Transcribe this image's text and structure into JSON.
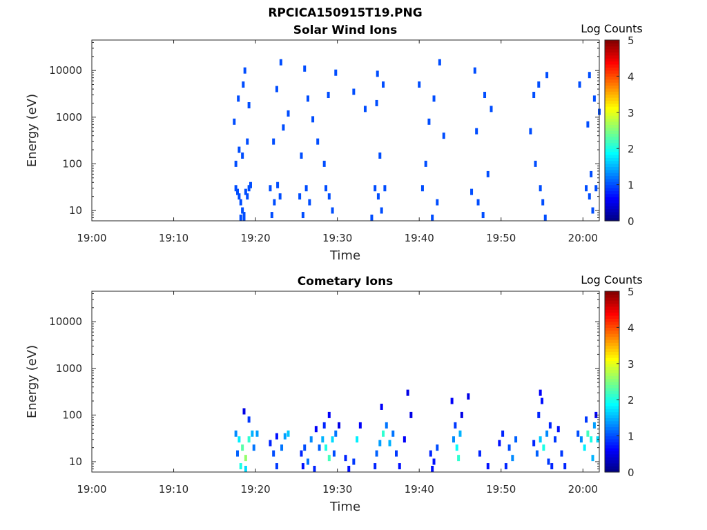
{
  "figure_title": "RPCICA150915T19.PNG",
  "colors": {
    "axis": "#262626",
    "background": "#ffffff",
    "colormap": "jet"
  },
  "chart_data": [
    {
      "type": "heatmap",
      "title": "Solar Wind Ions",
      "xlabel": "Time",
      "ylabel": "Energy (eV)",
      "x_ticks": [
        "19:00",
        "19:10",
        "19:20",
        "19:30",
        "19:40",
        "19:50",
        "20:00"
      ],
      "x_range_minutes": [
        0,
        62
      ],
      "y_scale": "log",
      "y_ticks": [
        "10",
        "100",
        "1000",
        "10000"
      ],
      "y_range": [
        6,
        45000
      ],
      "colorbar": {
        "label": "Log Counts",
        "ticks": [
          "0",
          "1",
          "2",
          "3",
          "4",
          "5"
        ],
        "range": [
          0,
          5
        ]
      },
      "cells": [
        [
          17.6,
          30,
          1
        ],
        [
          17.8,
          25,
          1
        ],
        [
          18.0,
          20,
          1
        ],
        [
          18.2,
          15,
          1
        ],
        [
          18.4,
          10,
          1
        ],
        [
          18.6,
          8,
          1
        ],
        [
          18.8,
          25,
          1
        ],
        [
          19.0,
          20,
          1
        ],
        [
          19.2,
          30,
          1
        ],
        [
          19.4,
          35,
          1
        ],
        [
          18.2,
          7,
          1
        ],
        [
          18.6,
          6,
          1
        ],
        [
          17.6,
          100,
          1
        ],
        [
          18.0,
          200,
          1
        ],
        [
          18.4,
          150,
          1
        ],
        [
          19.0,
          300,
          1
        ],
        [
          17.4,
          800,
          1
        ],
        [
          17.9,
          2500,
          1
        ],
        [
          18.5,
          5000,
          1
        ],
        [
          19.2,
          1800,
          1
        ],
        [
          18.7,
          10000,
          1
        ],
        [
          21.8,
          30,
          1
        ],
        [
          22.3,
          15,
          1
        ],
        [
          22.7,
          35,
          1
        ],
        [
          22.0,
          8,
          1
        ],
        [
          23.0,
          20,
          1
        ],
        [
          22.2,
          300,
          1
        ],
        [
          23.4,
          600,
          1
        ],
        [
          22.6,
          4000,
          1
        ],
        [
          23.1,
          15000,
          1
        ],
        [
          24.0,
          1200,
          1
        ],
        [
          25.4,
          20,
          1
        ],
        [
          25.8,
          8,
          1
        ],
        [
          26.2,
          30,
          1
        ],
        [
          26.6,
          15,
          1
        ],
        [
          25.6,
          150,
          1
        ],
        [
          26.4,
          2500,
          1
        ],
        [
          27.0,
          900,
          1
        ],
        [
          26.0,
          11000,
          1
        ],
        [
          27.6,
          300,
          1
        ],
        [
          28.6,
          30,
          1
        ],
        [
          29.0,
          20,
          1
        ],
        [
          29.4,
          10,
          1
        ],
        [
          28.4,
          100,
          1
        ],
        [
          28.9,
          3000,
          1
        ],
        [
          29.8,
          9000,
          1
        ],
        [
          34.6,
          30,
          1
        ],
        [
          35.0,
          20,
          1
        ],
        [
          35.4,
          10,
          1
        ],
        [
          35.8,
          30,
          1
        ],
        [
          34.2,
          7,
          1
        ],
        [
          35.2,
          150,
          1
        ],
        [
          34.8,
          2000,
          1
        ],
        [
          35.6,
          5000,
          1
        ],
        [
          34.9,
          8500,
          1
        ],
        [
          33.4,
          1500,
          1
        ],
        [
          32.0,
          3500,
          1
        ],
        [
          40.4,
          30,
          1
        ],
        [
          41.6,
          7,
          1
        ],
        [
          42.2,
          15,
          1
        ],
        [
          40.8,
          100,
          1
        ],
        [
          41.2,
          800,
          1
        ],
        [
          41.8,
          2500,
          1
        ],
        [
          42.5,
          15000,
          1
        ],
        [
          40.0,
          5000,
          1
        ],
        [
          43.0,
          400,
          1
        ],
        [
          46.4,
          25,
          1
        ],
        [
          47.2,
          15,
          1
        ],
        [
          47.8,
          8,
          1
        ],
        [
          48.4,
          60,
          1
        ],
        [
          47.0,
          500,
          1
        ],
        [
          48.0,
          3000,
          1
        ],
        [
          46.8,
          10000,
          1
        ],
        [
          48.8,
          1500,
          1
        ],
        [
          54.8,
          30,
          1
        ],
        [
          55.1,
          15,
          1
        ],
        [
          55.4,
          7,
          1
        ],
        [
          54.2,
          100,
          1
        ],
        [
          53.6,
          500,
          1
        ],
        [
          54.0,
          3000,
          1
        ],
        [
          54.6,
          5000,
          1
        ],
        [
          55.6,
          8000,
          1
        ],
        [
          60.4,
          30,
          1
        ],
        [
          60.8,
          20,
          1
        ],
        [
          61.2,
          10,
          1
        ],
        [
          61.6,
          30,
          1
        ],
        [
          61.0,
          60,
          1
        ],
        [
          60.6,
          700,
          1
        ],
        [
          61.4,
          2500,
          1
        ],
        [
          60.8,
          8000,
          1
        ],
        [
          59.6,
          5000,
          1
        ],
        [
          62.0,
          1300,
          1
        ]
      ]
    },
    {
      "type": "heatmap",
      "title": "Cometary Ions",
      "xlabel": "Time",
      "ylabel": "Energy (eV)",
      "x_ticks": [
        "19:00",
        "19:10",
        "19:20",
        "19:30",
        "19:40",
        "19:50",
        "20:00"
      ],
      "x_range_minutes": [
        0,
        62
      ],
      "y_scale": "log",
      "y_ticks": [
        "10",
        "100",
        "1000",
        "10000"
      ],
      "y_range": [
        6,
        45000
      ],
      "colorbar": {
        "label": "Log Counts",
        "ticks": [
          "0",
          "1",
          "2",
          "3",
          "4",
          "5"
        ],
        "range": [
          0,
          5
        ]
      },
      "cells": [
        [
          17.6,
          40,
          1.3
        ],
        [
          18.0,
          30,
          1.8
        ],
        [
          18.4,
          20,
          2.3
        ],
        [
          18.8,
          12,
          2.6
        ],
        [
          19.2,
          30,
          2.1
        ],
        [
          19.6,
          40,
          1.5
        ],
        [
          18.2,
          8,
          2.0
        ],
        [
          18.8,
          7,
          1.7
        ],
        [
          19.8,
          20,
          1.2
        ],
        [
          19.2,
          80,
          0.9
        ],
        [
          18.6,
          120,
          0.5
        ],
        [
          20.2,
          40,
          1.4
        ],
        [
          17.8,
          15,
          1.1
        ],
        [
          21.8,
          25,
          0.8
        ],
        [
          22.2,
          15,
          1.0
        ],
        [
          22.6,
          8,
          0.9
        ],
        [
          23.2,
          20,
          1.2
        ],
        [
          23.6,
          35,
          1.4
        ],
        [
          24.0,
          40,
          1.6
        ],
        [
          22.6,
          35,
          0.7
        ],
        [
          25.6,
          15,
          0.8
        ],
        [
          26.0,
          20,
          1.0
        ],
        [
          26.4,
          10,
          1.2
        ],
        [
          26.8,
          30,
          1.3
        ],
        [
          27.2,
          7,
          0.8
        ],
        [
          25.8,
          8,
          0.7
        ],
        [
          27.4,
          50,
          0.6
        ],
        [
          27.8,
          20,
          1.1
        ],
        [
          28.2,
          30,
          1.5
        ],
        [
          28.6,
          20,
          2.0
        ],
        [
          29.0,
          12,
          2.2
        ],
        [
          29.4,
          30,
          1.7
        ],
        [
          28.4,
          60,
          0.8
        ],
        [
          29.0,
          100,
          0.6
        ],
        [
          29.8,
          40,
          1.2
        ],
        [
          30.2,
          60,
          0.5
        ],
        [
          29.6,
          15,
          1.0
        ],
        [
          31.0,
          12,
          0.8
        ],
        [
          32.0,
          10,
          0.9
        ],
        [
          32.4,
          30,
          1.8
        ],
        [
          32.8,
          60,
          0.6
        ],
        [
          31.4,
          7,
          0.7
        ],
        [
          34.8,
          15,
          1.1
        ],
        [
          35.2,
          25,
          1.4
        ],
        [
          35.6,
          40,
          2.1
        ],
        [
          36.0,
          60,
          1.2
        ],
        [
          35.4,
          150,
          0.6
        ],
        [
          34.6,
          8,
          0.8
        ],
        [
          36.4,
          25,
          1.5
        ],
        [
          36.8,
          40,
          1.2
        ],
        [
          37.2,
          15,
          0.9
        ],
        [
          37.6,
          8,
          0.7
        ],
        [
          38.2,
          30,
          0.6
        ],
        [
          39.0,
          100,
          0.5
        ],
        [
          38.6,
          300,
          0.5
        ],
        [
          41.4,
          15,
          0.8
        ],
        [
          41.8,
          10,
          0.7
        ],
        [
          42.2,
          20,
          1.0
        ],
        [
          41.6,
          7,
          0.7
        ],
        [
          44.2,
          30,
          1.3
        ],
        [
          44.6,
          20,
          1.9
        ],
        [
          44.8,
          12,
          2.1
        ],
        [
          44.4,
          60,
          0.9
        ],
        [
          45.0,
          40,
          1.5
        ],
        [
          44.0,
          200,
          0.6
        ],
        [
          45.2,
          100,
          0.5
        ],
        [
          46.0,
          250,
          0.5
        ],
        [
          47.4,
          15,
          0.8
        ],
        [
          48.4,
          8,
          0.7
        ],
        [
          49.8,
          25,
          0.7
        ],
        [
          50.2,
          40,
          0.8
        ],
        [
          51.0,
          20,
          1.0
        ],
        [
          51.4,
          12,
          1.3
        ],
        [
          51.8,
          30,
          1.1
        ],
        [
          50.6,
          8,
          0.8
        ],
        [
          54.0,
          25,
          0.8
        ],
        [
          54.4,
          15,
          1.1
        ],
        [
          54.8,
          30,
          1.6
        ],
        [
          55.2,
          20,
          2.0
        ],
        [
          55.6,
          40,
          1.3
        ],
        [
          54.6,
          100,
          0.8
        ],
        [
          54.8,
          300,
          0.6
        ],
        [
          55.0,
          200,
          0.7
        ],
        [
          56.0,
          60,
          0.8
        ],
        [
          55.8,
          10,
          0.9
        ],
        [
          56.6,
          30,
          0.9
        ],
        [
          57.0,
          50,
          0.7
        ],
        [
          57.4,
          15,
          0.9
        ],
        [
          57.8,
          8,
          0.8
        ],
        [
          56.2,
          8,
          0.8
        ],
        [
          59.4,
          40,
          1.0
        ],
        [
          59.8,
          30,
          1.3
        ],
        [
          60.2,
          20,
          1.8
        ],
        [
          60.6,
          40,
          2.2
        ],
        [
          61.0,
          30,
          2.0
        ],
        [
          61.4,
          60,
          1.4
        ],
        [
          61.2,
          12,
          1.5
        ],
        [
          60.4,
          80,
          0.9
        ],
        [
          61.8,
          30,
          1.7
        ],
        [
          61.6,
          100,
          0.6
        ]
      ]
    }
  ]
}
